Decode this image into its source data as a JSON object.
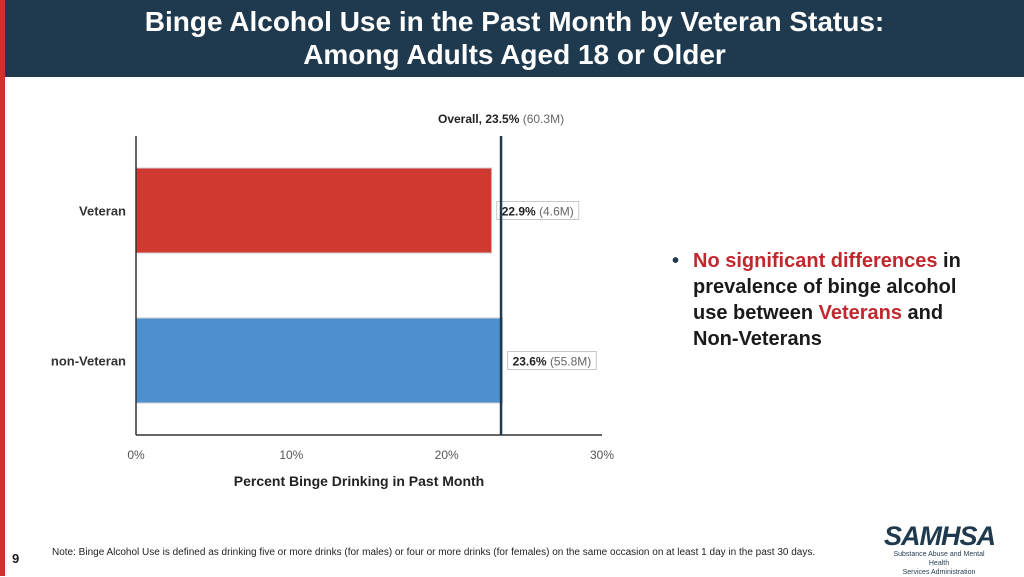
{
  "header": {
    "title_line1": "Binge Alcohol Use in the Past Month by Veteran Status:",
    "title_line2": "Among Adults Aged 18 or Older"
  },
  "colors": {
    "header_bg": "#1f3a4e",
    "veteran_bar": "#d0392f",
    "nonveteran_bar": "#4e8fce",
    "highlight": "#c0282d",
    "reference_line": "#1f3a4e"
  },
  "chart_data": {
    "type": "bar",
    "orientation": "horizontal",
    "categories": [
      "Veteran",
      "non-Veteran"
    ],
    "values": [
      22.9,
      23.6
    ],
    "value_labels": [
      "22.9%",
      "23.6%"
    ],
    "count_labels": [
      "(4.6M)",
      "(55.8M)"
    ],
    "xlim": [
      0,
      30
    ],
    "xticks": [
      "0%",
      "10%",
      "20%",
      "30%"
    ],
    "xtick_values": [
      0,
      10,
      20,
      30
    ],
    "xlabel": "Percent Binge Drinking in Past Month",
    "reference": {
      "value": 23.5,
      "label": "Overall, 23.5%",
      "count": "(60.3M)"
    },
    "grid": false
  },
  "bullet": {
    "part1": "No significant differences",
    "part2": " in prevalence of binge alcohol use between ",
    "part3": "Veterans",
    "part4": " and Non-Veterans"
  },
  "footer": {
    "page_number": "9",
    "note": "Note: Binge Alcohol Use is defined as drinking five or more drinks (for males) or four or more drinks (for females) on the same occasion on at least 1 day in the past 30 days.",
    "logo_word": "SAMHSA",
    "logo_sub_line1": "Substance Abuse and Mental Health",
    "logo_sub_line2": "Services Administration"
  }
}
